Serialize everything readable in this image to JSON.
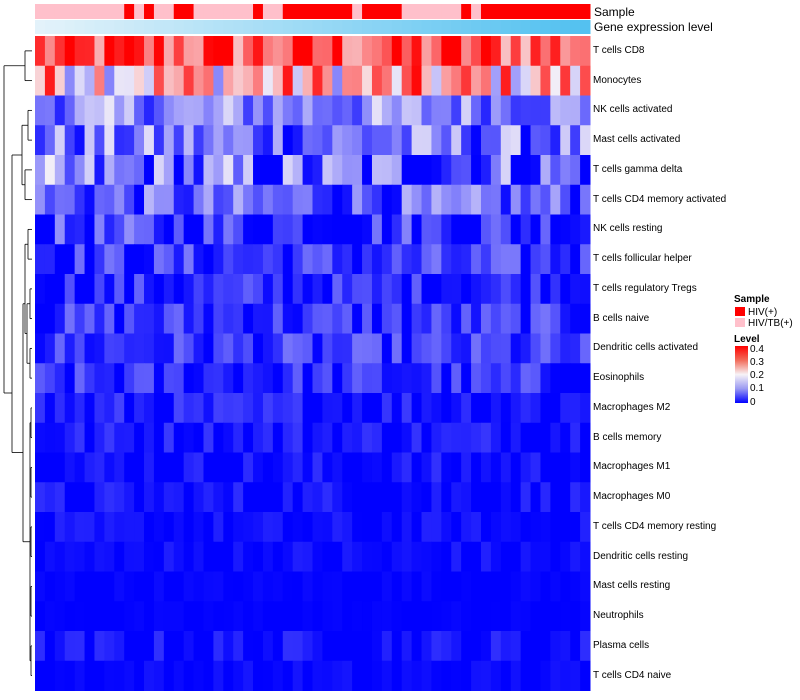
{
  "chart_data": {
    "type": "heatmap",
    "annotation_tracks": [
      {
        "name": "Sample",
        "title": "Sample",
        "values": [
          "HIV/TB(+)",
          "HIV/TB(+)",
          "HIV/TB(+)",
          "HIV/TB(+)",
          "HIV/TB(+)",
          "HIV/TB(+)",
          "HIV/TB(+)",
          "HIV/TB(+)",
          "HIV/TB(+)",
          "HIV(+)",
          "HIV/TB(+)",
          "HIV(+)",
          "HIV/TB(+)",
          "HIV/TB(+)",
          "HIV(+)",
          "HIV(+)",
          "HIV/TB(+)",
          "HIV/TB(+)",
          "HIV/TB(+)",
          "HIV/TB(+)",
          "HIV/TB(+)",
          "HIV/TB(+)",
          "HIV(+)",
          "HIV/TB(+)",
          "HIV/TB(+)",
          "HIV(+)",
          "HIV(+)",
          "HIV(+)",
          "HIV(+)",
          "HIV(+)",
          "HIV(+)",
          "HIV(+)",
          "HIV/TB(+)",
          "HIV(+)",
          "HIV(+)",
          "HIV(+)",
          "HIV(+)",
          "HIV/TB(+)",
          "HIV/TB(+)",
          "HIV/TB(+)",
          "HIV/TB(+)",
          "HIV/TB(+)",
          "HIV/TB(+)",
          "HIV(+)",
          "HIV/TB(+)",
          "HIV(+)",
          "HIV(+)",
          "HIV(+)",
          "HIV(+)",
          "HIV(+)",
          "HIV(+)",
          "HIV(+)",
          "HIV(+)",
          "HIV(+)",
          "HIV(+)",
          "HIV(+)"
        ]
      },
      {
        "name": "Gene expression level",
        "title": "Gene expression level",
        "values": [
          0.02,
          0.04,
          0.05,
          0.07,
          0.09,
          0.11,
          0.13,
          0.14,
          0.16,
          0.18,
          0.2,
          0.22,
          0.24,
          0.25,
          0.27,
          0.29,
          0.31,
          0.33,
          0.35,
          0.36,
          0.38,
          0.4,
          0.42,
          0.44,
          0.45,
          0.47,
          0.49,
          0.51,
          0.53,
          0.55,
          0.56,
          0.58,
          0.6,
          0.62,
          0.64,
          0.65,
          0.67,
          0.69,
          0.71,
          0.73,
          0.75,
          0.76,
          0.78,
          0.8,
          0.82,
          0.84,
          0.85,
          0.87,
          0.89,
          0.91,
          0.93,
          0.95,
          0.96,
          0.98,
          0.99,
          1.0
        ]
      }
    ],
    "rows": [
      "T cells CD8",
      "Monocytes",
      "NK cells activated",
      "Mast cells activated",
      "T cells gamma delta",
      "T cells CD4 memory activated",
      "NK cells resting",
      "T cells follicular helper",
      "T cells regulatory  Tregs",
      "B cells naive",
      "Dendritic cells activated",
      "Eosinophils",
      "Macrophages M2",
      "B cells memory",
      "Macrophages M1",
      "Macrophages M0",
      "T cells CD4 memory resting",
      "Dendritic cells resting",
      "Mast cells resting",
      "Neutrophils",
      "Plasma cells",
      "T cells CD4 naive"
    ],
    "n_columns": 56,
    "row_means": [
      0.33,
      0.25,
      0.11,
      0.09,
      0.07,
      0.07,
      0.04,
      0.04,
      0.03,
      0.04,
      0.04,
      0.03,
      0.02,
      0.02,
      0.01,
      0.01,
      0.005,
      0.005,
      0.002,
      0.001,
      0.01,
      0.003
    ],
    "row_variation": [
      0.07,
      0.09,
      0.05,
      0.06,
      0.08,
      0.05,
      0.05,
      0.04,
      0.035,
      0.035,
      0.035,
      0.035,
      0.025,
      0.02,
      0.02,
      0.02,
      0.015,
      0.015,
      0.005,
      0.003,
      0.02,
      0.01
    ],
    "colorscale": {
      "min": 0,
      "max": 0.4,
      "low": "#0000ff",
      "mid": "#f7f3f7",
      "high": "#ff0000",
      "ticks": [
        "0",
        "0.1",
        "0.2",
        "0.3",
        "0.4"
      ]
    },
    "legends": [
      {
        "title": "Sample",
        "items": [
          {
            "label": "HIV(+)",
            "color": "#ff0000"
          },
          {
            "label": "HIV/TB(+)",
            "color": "#ffc0cb"
          }
        ]
      },
      {
        "title": "Level"
      }
    ],
    "row_dendrogram": true,
    "column_dendrogram": false
  }
}
